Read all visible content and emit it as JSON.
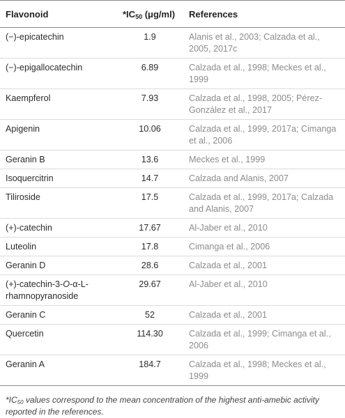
{
  "header": {
    "col_flavonoid": "Flavonoid",
    "col_ic_prefix": "*IC",
    "col_ic_sub": "50",
    "col_ic_suffix": " (μg/ml)",
    "col_references": "References"
  },
  "rows": [
    {
      "flavonoid": "(−)-epicatechin",
      "ic50": "1.9",
      "references": "Alanis et al., 2003; Calzada et al., 2005, 2017c"
    },
    {
      "flavonoid": "(−)-epigallocatechin",
      "ic50": "6.89",
      "references": "Calzada et al., 1998; Meckes et al., 1999"
    },
    {
      "flavonoid": "Kaempferol",
      "ic50": "7.93",
      "references": "Calzada et al., 1998, 2005; Pérez-González et al., 2017"
    },
    {
      "flavonoid": "Apigenin",
      "ic50": "10.06",
      "references": "Calzada et al., 1999, 2017a; Cimanga et al., 2006"
    },
    {
      "flavonoid": "Geranin B",
      "ic50": "13.6",
      "references": "Meckes et al., 1999"
    },
    {
      "flavonoid": "Isoquercitrin",
      "ic50": "14.7",
      "references": "Calzada and Alanis, 2007"
    },
    {
      "flavonoid": "Tiliroside",
      "ic50": "17.5",
      "references": "Calzada et al., 1999, 2017a; Calzada and Alanis, 2007"
    },
    {
      "flavonoid": "(+)-catechin",
      "ic50": "17.67",
      "references": "Al-Jaber et al., 2010"
    },
    {
      "flavonoid": "Luteolin",
      "ic50": "17.8",
      "references": "Cimanga et al., 2006"
    },
    {
      "flavonoid": "Geranin D",
      "ic50": "28.6",
      "references": "Calzada et al., 2001"
    },
    {
      "flavonoid_pre": "(+)-catechin-3-",
      "flavonoid_it": "O",
      "flavonoid_post": "-α-L-rhamnopyranoside",
      "ic50": "29.67",
      "references": "Al-Jaber et al., 2010"
    },
    {
      "flavonoid": "Geranin C",
      "ic50": "52",
      "references": "Calzada et al., 2001"
    },
    {
      "flavonoid": "Quercetin",
      "ic50": "114.30",
      "references": "Calzada et al., 1999; Cimanga et al., 2006"
    },
    {
      "flavonoid": "Geranin A",
      "ic50": "184.7",
      "references": "Calzada et al., 1998; Meckes et al., 1999"
    }
  ],
  "footnote": {
    "prefix": "*IC",
    "sub": "50",
    "text": " values correspond to the mean concentration of the highest anti-amebic activity reported in the references."
  }
}
